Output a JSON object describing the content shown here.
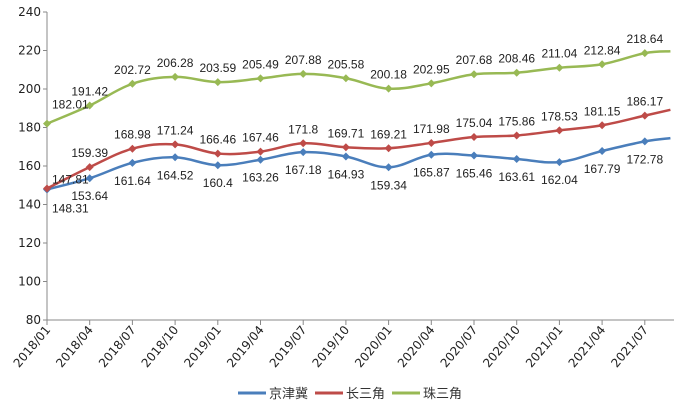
{
  "chart_data": {
    "type": "line",
    "title": "",
    "xlabel": "",
    "ylabel": "",
    "ylim": [
      80,
      240
    ],
    "yticks": [
      80,
      100,
      120,
      140,
      160,
      180,
      200,
      220,
      240
    ],
    "categories": [
      "2018/01",
      "2018/04",
      "2018/07",
      "2018/10",
      "2019/01",
      "2019/04",
      "2019/07",
      "2019/10",
      "2020/01",
      "2020/04",
      "2020/07",
      "2020/10",
      "2021/01",
      "2021/04",
      "2021/07"
    ],
    "grid": false,
    "legend_position": "bottom",
    "series": [
      {
        "name": "京津冀",
        "color": "#4a7ebb",
        "values": [
          147.81,
          153.64,
          161.64,
          164.52,
          160.4,
          163.26,
          167.18,
          164.93,
          159.34,
          165.87,
          165.46,
          163.61,
          162.04,
          167.79,
          172.78
        ]
      },
      {
        "name": "长三角",
        "color": "#be4b48",
        "values": [
          148.31,
          159.39,
          168.98,
          171.24,
          166.46,
          167.46,
          171.8,
          169.71,
          169.21,
          171.98,
          175.04,
          175.86,
          178.53,
          181.15,
          186.17
        ]
      },
      {
        "name": "珠三角",
        "color": "#98b954",
        "values": [
          182.01,
          191.42,
          202.72,
          206.28,
          203.59,
          205.49,
          207.88,
          205.58,
          200.18,
          202.95,
          207.68,
          208.46,
          211.04,
          212.84,
          218.64
        ]
      }
    ]
  }
}
